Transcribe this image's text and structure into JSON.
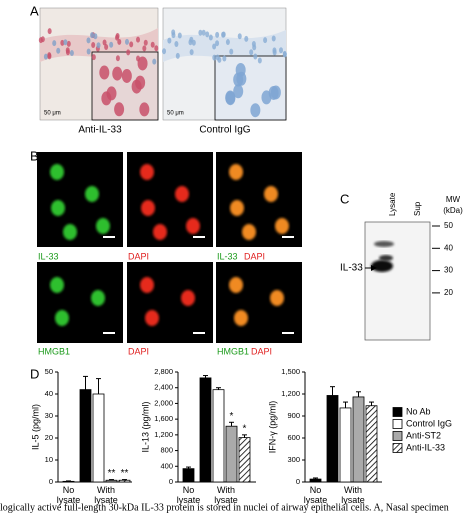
{
  "panel_a": {
    "label": "A",
    "scale_bars": [
      "50 μm",
      "50 μm"
    ],
    "captions": [
      "Anti-IL-33",
      "Control IgG"
    ]
  },
  "panel_b": {
    "label": "B",
    "rows": [
      [
        "IL-33",
        "DAPI",
        "IL-33",
        "DAPI"
      ],
      [
        "HMGB1",
        "DAPI",
        "HMGB1",
        "DAPI"
      ]
    ]
  },
  "panel_c": {
    "label": "C",
    "lanes": [
      "Lysate",
      "Sup"
    ],
    "mw_title": [
      "MW",
      "(kDa)"
    ],
    "mw_ticks": [
      50,
      40,
      30,
      20
    ],
    "band_label": "IL-33"
  },
  "panel_d": {
    "label": "D"
  },
  "chart_data": [
    {
      "type": "bar",
      "ylabel": "IL-5 (pg/ml)",
      "categories": [
        "No lysate",
        "With lysate"
      ],
      "ylim": [
        0,
        50
      ],
      "yticks": [
        0,
        10,
        20,
        30,
        40,
        50
      ],
      "series": [
        {
          "color": "#000000",
          "values": [
            0.3,
            42
          ],
          "errors": [
            0.2,
            6
          ]
        },
        {
          "color": "#ffffff",
          "values": [
            null,
            40
          ],
          "errors": [
            null,
            7
          ]
        },
        {
          "color": "#aaaaaa",
          "values": [
            null,
            0.8
          ],
          "errors": [
            null,
            0.3
          ],
          "annotations": [
            null,
            "**"
          ]
        },
        {
          "color": "#ffffff",
          "hatch": true,
          "values": [
            null,
            0.8
          ],
          "errors": [
            null,
            0.3
          ],
          "annotations": [
            null,
            "**"
          ]
        }
      ]
    },
    {
      "type": "bar",
      "ylabel": "IL-13 (pg/ml)",
      "categories": [
        "No lysate",
        "With lysate"
      ],
      "ylim": [
        0,
        2800
      ],
      "yticks": [
        0,
        400,
        800,
        {
          "value": 1200,
          "label": "1,200"
        },
        {
          "value": 1600,
          "label": "1,600"
        },
        {
          "value": 2000,
          "label": "2,000"
        },
        {
          "value": 2400,
          "label": "2,400"
        },
        {
          "value": 2800,
          "label": "2,800"
        }
      ],
      "series": [
        {
          "color": "#000000",
          "values": [
            340,
            2650
          ],
          "errors": [
            40,
            60
          ]
        },
        {
          "color": "#ffffff",
          "values": [
            null,
            2350
          ],
          "errors": [
            null,
            50
          ]
        },
        {
          "color": "#aaaaaa",
          "values": [
            null,
            1420
          ],
          "errors": [
            null,
            100
          ],
          "annotations": [
            null,
            "*"
          ]
        },
        {
          "color": "#ffffff",
          "hatch": true,
          "values": [
            null,
            1130
          ],
          "errors": [
            null,
            70
          ],
          "annotations": [
            null,
            "*"
          ]
        }
      ]
    },
    {
      "type": "bar",
      "ylabel": "IFN-γ (pg/ml)",
      "categories": [
        "No lysate",
        "With lysate"
      ],
      "ylim": [
        0,
        1500
      ],
      "yticks": [
        0,
        300,
        600,
        900,
        {
          "value": 1200,
          "label": "1,200"
        },
        {
          "value": 1500,
          "label": "1,500"
        }
      ],
      "series": [
        {
          "color": "#000000",
          "values": [
            40,
            1180
          ],
          "errors": [
            15,
            120
          ]
        },
        {
          "color": "#ffffff",
          "values": [
            null,
            1010
          ],
          "errors": [
            null,
            80
          ]
        },
        {
          "color": "#aaaaaa",
          "values": [
            null,
            1160
          ],
          "errors": [
            null,
            70
          ]
        },
        {
          "color": "#ffffff",
          "hatch": true,
          "values": [
            null,
            1040
          ],
          "errors": [
            null,
            50
          ]
        }
      ]
    }
  ],
  "legend": [
    "No Ab",
    "Control IgG",
    "Anti-ST2",
    "Anti-IL-33"
  ],
  "caption": "logically active full-length 30-kDa IL-33 protein is stored in nuclei of airway epithelial cells. A, Nasal specimen"
}
